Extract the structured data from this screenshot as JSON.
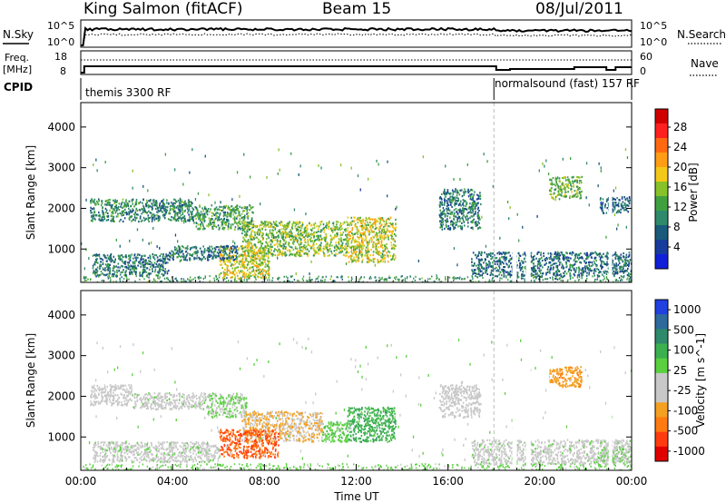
{
  "header": {
    "station": "King Salmon (fitACF)",
    "beam": "Beam 15",
    "date": "08/Jul/2011"
  },
  "status_panels": {
    "noise": {
      "left_label": "N.Sky",
      "right_label": "N.Search",
      "left_ticks": [
        "10^5",
        "10^0"
      ],
      "right_ticks": [
        "10^5",
        "10^0"
      ],
      "legend_style": "dotted"
    },
    "frequency": {
      "left_label_line1": "Freq.",
      "left_label_line2": "[MHz]",
      "right_label": "Nave",
      "left_ticks": [
        "18",
        "8"
      ],
      "right_ticks": [
        "60",
        "0"
      ],
      "legend_style": "dotted"
    },
    "cpid": {
      "label": "CPID",
      "segments": [
        {
          "name": "themis 3300 RF",
          "start_hour": 0
        },
        {
          "name": "normalsound (fast) 157 RF",
          "start_hour": 18.0
        }
      ]
    }
  },
  "chart_data": [
    {
      "type": "heatmap",
      "parameter": "power",
      "ylabel": "Slant Range [km]",
      "ylim": [
        180,
        4600
      ],
      "yticks": [
        1000,
        2000,
        3000,
        4000
      ],
      "colorbar": {
        "label": "Power [dB]",
        "ticks": [
          "28",
          "24",
          "20",
          "16",
          "12",
          "8",
          "4"
        ],
        "colors": [
          "#d00000",
          "#ff2020",
          "#ff6a10",
          "#ff9e14",
          "#f4c818",
          "#88c22a",
          "#40a040",
          "#2e8a6a",
          "#1a5a7a",
          "#183c9c",
          "#1020d8"
        ]
      },
      "echo_regions": [
        {
          "t0": 0.4,
          "t1": 4.9,
          "r0": 1700,
          "r1": 2250,
          "power_dB": 9
        },
        {
          "t0": 4.9,
          "t1": 7.5,
          "r0": 1500,
          "r1": 2100,
          "power_dB": 11
        },
        {
          "t0": 7.0,
          "t1": 11.6,
          "r0": 850,
          "r1": 1700,
          "power_dB": 14
        },
        {
          "t0": 11.6,
          "t1": 13.7,
          "r0": 700,
          "r1": 1800,
          "power_dB": 17
        },
        {
          "t0": 6.0,
          "t1": 8.2,
          "r0": 300,
          "r1": 1100,
          "power_dB": 17
        },
        {
          "t0": 0.5,
          "t1": 3.8,
          "r0": 350,
          "r1": 900,
          "power_dB": 8
        },
        {
          "t0": 3.8,
          "t1": 6.8,
          "r0": 750,
          "r1": 1100,
          "power_dB": 7
        },
        {
          "t0": 15.6,
          "t1": 17.4,
          "r0": 1500,
          "r1": 2500,
          "power_dB": 8
        },
        {
          "t0": 17.0,
          "t1": 24.0,
          "r0": 350,
          "r1": 950,
          "power_dB": 7
        },
        {
          "t0": 20.4,
          "t1": 21.8,
          "r0": 2250,
          "r1": 2800,
          "power_dB": 13
        },
        {
          "t0": 22.6,
          "t1": 23.9,
          "r0": 1900,
          "r1": 2300,
          "power_dB": 6
        }
      ]
    },
    {
      "type": "heatmap",
      "parameter": "velocity",
      "xlabel": "Time UT",
      "ylabel": "Slant Range [km]",
      "xlim": [
        0,
        24
      ],
      "xticks": [
        "00:00",
        "04:00",
        "08:00",
        "12:00",
        "16:00",
        "20:00",
        "00:00"
      ],
      "ylim": [
        180,
        4600
      ],
      "yticks": [
        1000,
        2000,
        3000,
        4000
      ],
      "colorbar": {
        "label": "Velocity [m s^-1]",
        "ticks": [
          "1000",
          "500",
          "100",
          "25",
          "-25",
          "-100",
          "-500",
          "-1000"
        ],
        "colors": [
          "#2040e0",
          "#2e6a9c",
          "#2e8a6a",
          "#3cb050",
          "#5ad040",
          "#c8c8c8",
          "#c8c8c8",
          "#f4a020",
          "#ff7a10",
          "#ff3c10",
          "#e00000"
        ]
      },
      "echo_regions": [
        {
          "t0": 0.4,
          "t1": 2.2,
          "r0": 1800,
          "r1": 2300,
          "velocity_ms": -150
        },
        {
          "t0": 2.2,
          "t1": 5.5,
          "r0": 1700,
          "r1": 2100,
          "velocity_ms": 0
        },
        {
          "t0": 5.5,
          "t1": 7.2,
          "r0": 1500,
          "r1": 2100,
          "velocity_ms": 120
        },
        {
          "t0": 7.0,
          "t1": 10.5,
          "r0": 900,
          "r1": 1650,
          "velocity_ms": -300
        },
        {
          "t0": 10.5,
          "t1": 11.6,
          "r0": 900,
          "r1": 1400,
          "velocity_ms": 200
        },
        {
          "t0": 11.6,
          "t1": 13.7,
          "r0": 900,
          "r1": 1750,
          "velocity_ms": 400
        },
        {
          "t0": 6.0,
          "t1": 8.6,
          "r0": 500,
          "r1": 1200,
          "velocity_ms": -700
        },
        {
          "t0": 0.5,
          "t1": 6.0,
          "r0": 400,
          "r1": 900,
          "velocity_ms": 0
        },
        {
          "t0": 15.6,
          "t1": 17.4,
          "r0": 1500,
          "r1": 2300,
          "velocity_ms": -150
        },
        {
          "t0": 17.0,
          "t1": 24.0,
          "r0": 350,
          "r1": 950,
          "velocity_ms": 0
        },
        {
          "t0": 20.4,
          "t1": 21.8,
          "r0": 2250,
          "r1": 2750,
          "velocity_ms": -450
        },
        {
          "t0": 22.6,
          "t1": 24.0,
          "r0": 400,
          "r1": 800,
          "velocity_ms": 80
        }
      ]
    }
  ]
}
